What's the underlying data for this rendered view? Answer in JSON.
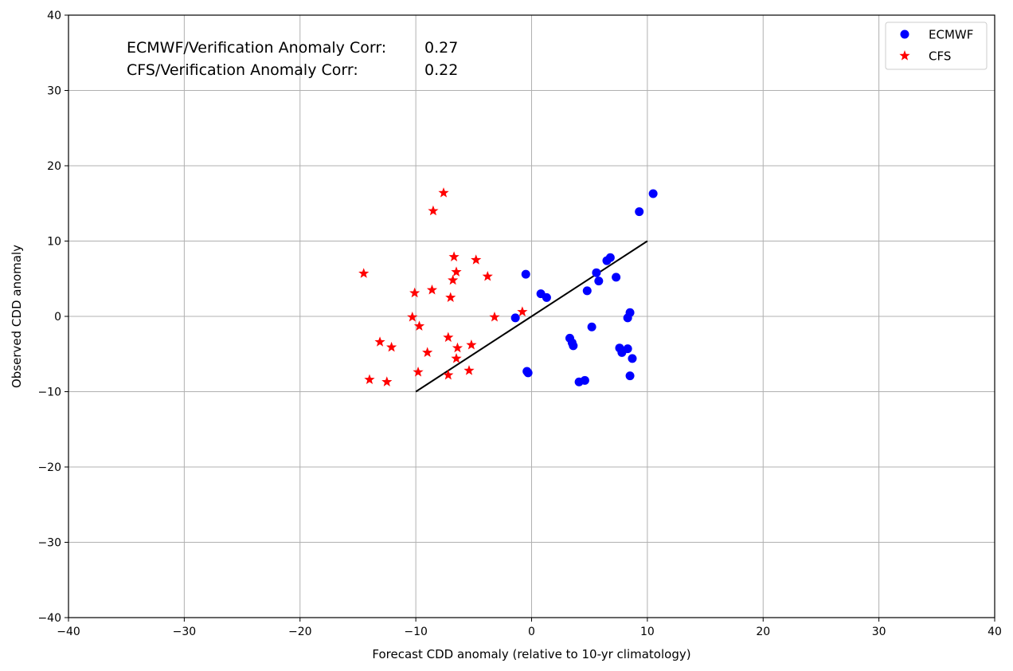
{
  "chart_data": {
    "type": "scatter",
    "title": "",
    "xlabel": "Forecast CDD anomaly (relative to 10-yr climatology)",
    "ylabel": "Observed CDD anomaly",
    "xlim": [
      -40,
      40
    ],
    "ylim": [
      -40,
      40
    ],
    "xticks": [
      -40,
      -30,
      -20,
      -10,
      0,
      10,
      20,
      30,
      40
    ],
    "yticks": [
      -40,
      -30,
      -20,
      -10,
      0,
      10,
      20,
      30,
      40
    ],
    "xtick_labels": [
      "−40",
      "−30",
      "−20",
      "−10",
      "0",
      "10",
      "20",
      "30",
      "40"
    ],
    "ytick_labels": [
      "−40",
      "−30",
      "−20",
      "−10",
      "0",
      "10",
      "20",
      "30",
      "40"
    ],
    "grid": true,
    "legend_position": "top-right",
    "annotations": [
      {
        "label": "ECMWF/Verification Anomaly Corr:",
        "value": "0.27"
      },
      {
        "label": "CFS/Verification Anomaly Corr:",
        "value": "0.22"
      }
    ],
    "reference_line": {
      "x": [
        -10,
        10
      ],
      "y": [
        -10,
        10
      ],
      "color": "#000000"
    },
    "series": [
      {
        "name": "ECMWF",
        "marker": "circle",
        "color": "#0000ff",
        "points": [
          [
            10.5,
            16.3
          ],
          [
            9.3,
            13.9
          ],
          [
            6.8,
            7.8
          ],
          [
            6.5,
            7.4
          ],
          [
            5.6,
            5.8
          ],
          [
            5.8,
            4.7
          ],
          [
            7.3,
            5.2
          ],
          [
            -0.5,
            5.6
          ],
          [
            0.8,
            3.0
          ],
          [
            1.3,
            2.5
          ],
          [
            4.8,
            3.4
          ],
          [
            -1.4,
            -0.2
          ],
          [
            8.5,
            0.5
          ],
          [
            8.3,
            -0.2
          ],
          [
            5.2,
            -1.4
          ],
          [
            3.3,
            -2.9
          ],
          [
            3.5,
            -3.5
          ],
          [
            3.6,
            -3.9
          ],
          [
            7.6,
            -4.2
          ],
          [
            8.3,
            -4.3
          ],
          [
            7.8,
            -4.8
          ],
          [
            8.7,
            -5.6
          ],
          [
            -0.4,
            -7.3
          ],
          [
            -0.3,
            -7.5
          ],
          [
            8.5,
            -7.9
          ],
          [
            4.1,
            -8.7
          ],
          [
            4.6,
            -8.5
          ]
        ]
      },
      {
        "name": "CFS",
        "marker": "star",
        "color": "#ff0000",
        "points": [
          [
            -7.6,
            16.4
          ],
          [
            -8.5,
            14.0
          ],
          [
            -6.7,
            7.9
          ],
          [
            -4.8,
            7.5
          ],
          [
            -14.5,
            5.7
          ],
          [
            -6.5,
            5.9
          ],
          [
            -3.8,
            5.3
          ],
          [
            -6.8,
            4.8
          ],
          [
            -10.1,
            3.1
          ],
          [
            -8.6,
            3.5
          ],
          [
            -7.0,
            2.5
          ],
          [
            -0.8,
            0.6
          ],
          [
            -3.2,
            -0.1
          ],
          [
            -10.3,
            -0.1
          ],
          [
            -9.7,
            -1.3
          ],
          [
            -7.2,
            -2.8
          ],
          [
            -13.1,
            -3.4
          ],
          [
            -12.1,
            -4.1
          ],
          [
            -5.2,
            -3.8
          ],
          [
            -6.4,
            -4.2
          ],
          [
            -9.0,
            -4.8
          ],
          [
            -6.5,
            -5.6
          ],
          [
            -9.8,
            -7.4
          ],
          [
            -7.2,
            -7.8
          ],
          [
            -5.4,
            -7.2
          ],
          [
            -14.0,
            -8.4
          ],
          [
            -12.5,
            -8.7
          ]
        ]
      }
    ]
  }
}
